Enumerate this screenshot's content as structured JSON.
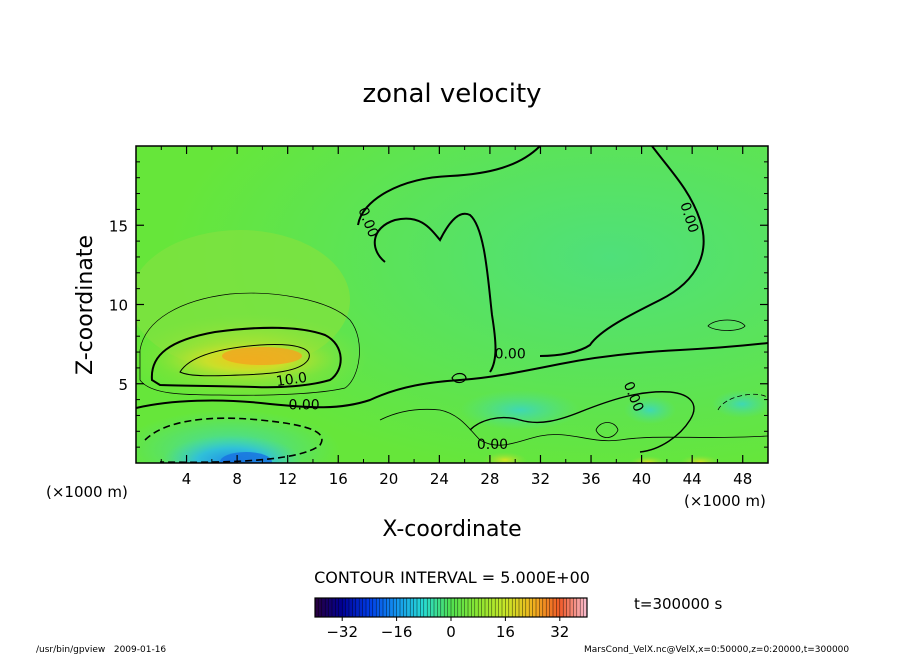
{
  "chart_data": {
    "type": "heatmap",
    "title": "zonal velocity",
    "xlabel": "X-coordinate",
    "ylabel": "Z-coordinate",
    "x_unit_left": "(×1000 m)",
    "x_unit_right": "(×1000 m)",
    "xlim": [
      0,
      50
    ],
    "ylim": [
      0,
      20
    ],
    "x_ticks": [
      4,
      8,
      12,
      16,
      20,
      24,
      28,
      32,
      36,
      40,
      44,
      48
    ],
    "y_ticks": [
      5,
      10,
      15
    ],
    "contour_interval_text": "CONTOUR INTERVAL = 5.000E+00",
    "time_text": "t=300000 s",
    "colorbar": {
      "range": [
        -40,
        40
      ],
      "ticks": [
        -32,
        -16,
        0,
        16,
        32
      ]
    },
    "contour_labels": [
      {
        "text": "0.00",
        "x": 18.4,
        "z": 15.2
      },
      {
        "text": "0.00",
        "x": 43.8,
        "z": 15.5
      },
      {
        "text": "0.00",
        "x": 29.6,
        "z": 6.9
      },
      {
        "text": "10.0",
        "x": 12.3,
        "z": 5.3
      },
      {
        "text": "0.00",
        "x": 13.3,
        "z": 3.7
      },
      {
        "text": "0.00",
        "x": 39.4,
        "z": 4.2
      },
      {
        "text": "0.00",
        "x": 28.2,
        "z": 1.2
      }
    ],
    "features": [
      {
        "kind": "max",
        "x": 9.5,
        "z": 6.6,
        "value": 17
      },
      {
        "kind": "min",
        "x": 8.5,
        "z": 0.6,
        "value": -12
      }
    ]
  },
  "footer": {
    "left": "/usr/bin/gpview   2009-01-16",
    "right": "MarsCond_VelX.nc@VelX,x=0:50000,z=0:20000,t=300000"
  }
}
